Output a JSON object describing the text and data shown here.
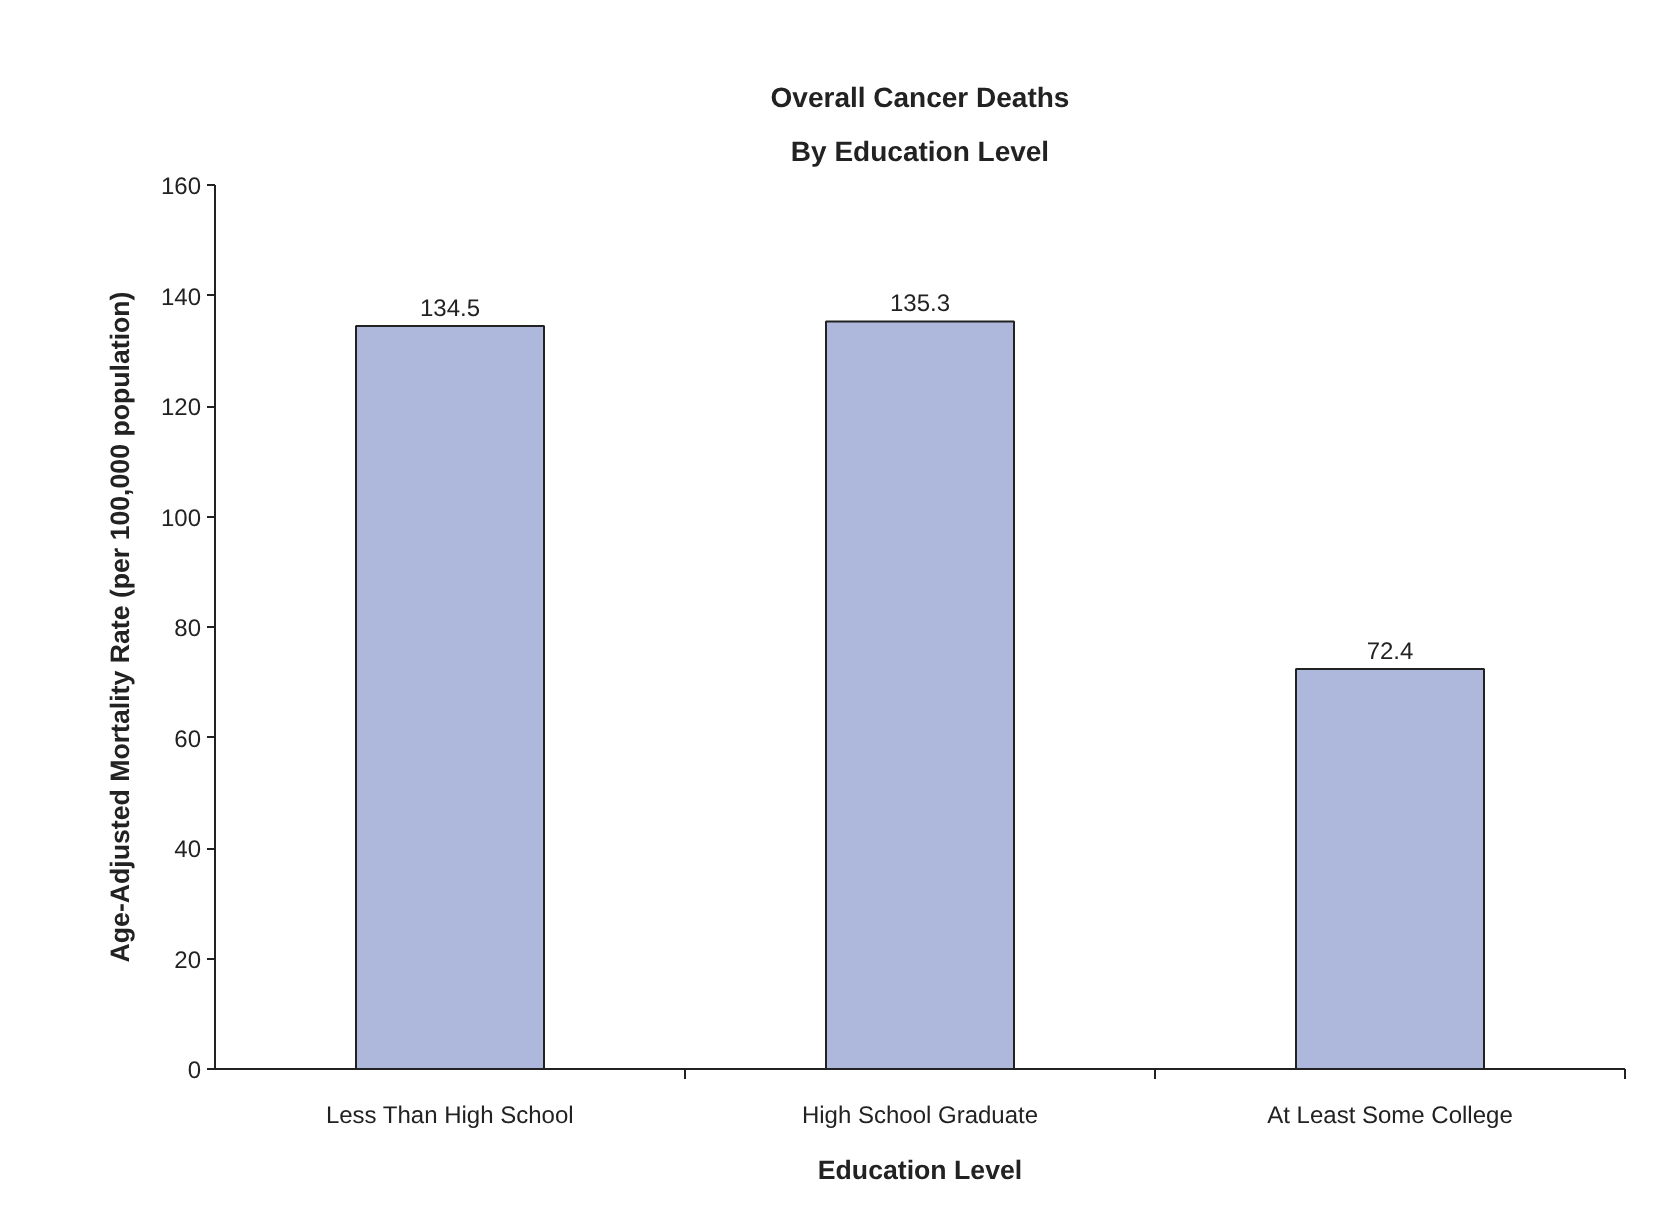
{
  "chart_data": {
    "type": "bar",
    "title": "Overall Cancer Deaths",
    "subtitle": "By Education Level",
    "xlabel": "Education Level",
    "ylabel": "Age-Adjusted Mortality Rate (per 100,000 population)",
    "categories": [
      "Less Than High School",
      "High School Graduate",
      "At Least Some College"
    ],
    "values": [
      134.5,
      135.3,
      72.4
    ],
    "color": "#aeb7dc",
    "ylim": [
      0,
      160
    ],
    "yticks": [
      0,
      20,
      40,
      60,
      80,
      100,
      120,
      140,
      160
    ],
    "data_labels": true
  }
}
